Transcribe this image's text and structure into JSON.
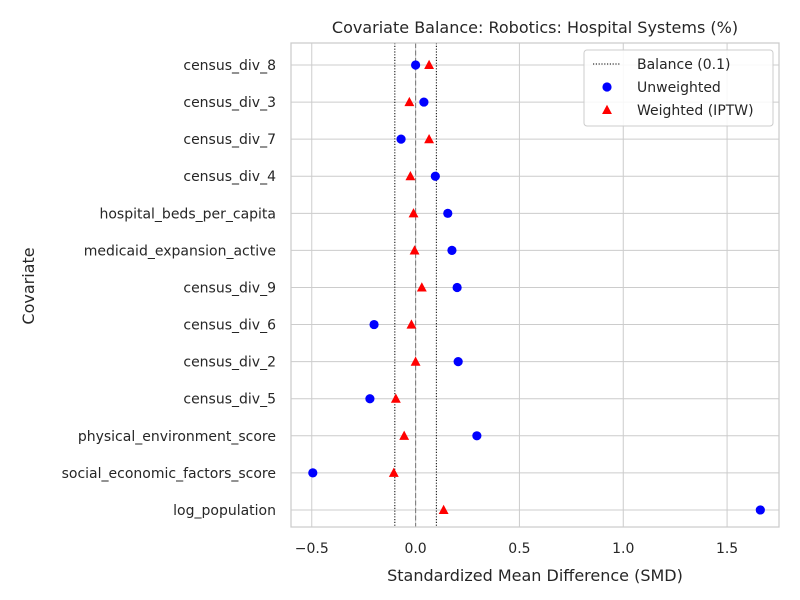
{
  "chart_data": {
    "type": "scatter",
    "title": "Covariate Balance: Robotics: Hospital Systems (%)",
    "xlabel": "Standardized Mean Difference (SMD)",
    "ylabel": "Covariate",
    "xlim": [
      -0.6,
      1.75
    ],
    "xticks": [
      -0.5,
      0.0,
      0.5,
      1.0,
      1.5
    ],
    "xtick_labels": [
      "−0.5",
      "0.0",
      "0.5",
      "1.0",
      "1.5"
    ],
    "grid": true,
    "legend_position": "top-right",
    "balance_threshold": 0.1,
    "categories": [
      "census_div_8",
      "census_div_3",
      "census_div_7",
      "census_div_4",
      "hospital_beds_per_capita",
      "medicaid_expansion_active",
      "census_div_9",
      "census_div_6",
      "census_div_2",
      "census_div_5",
      "physical_environment_score",
      "social_economic_factors_score",
      "log_population"
    ],
    "series": [
      {
        "name": "Unweighted",
        "marker": "circle",
        "color": "#0000ff",
        "values": [
          0.0,
          0.04,
          -0.07,
          0.095,
          0.155,
          0.175,
          0.2,
          -0.2,
          0.205,
          -0.22,
          0.295,
          -0.495,
          1.66
        ]
      },
      {
        "name": "Weighted (IPTW)",
        "marker": "triangle",
        "color": "#ff0000",
        "values": [
          0.065,
          -0.03,
          0.065,
          -0.025,
          -0.01,
          -0.005,
          0.03,
          -0.02,
          0.0,
          -0.095,
          -0.055,
          -0.105,
          0.135
        ]
      }
    ],
    "reference_lines": [
      {
        "label": "Balance (0.1)",
        "style": "dotted",
        "color": "#000000"
      }
    ]
  }
}
